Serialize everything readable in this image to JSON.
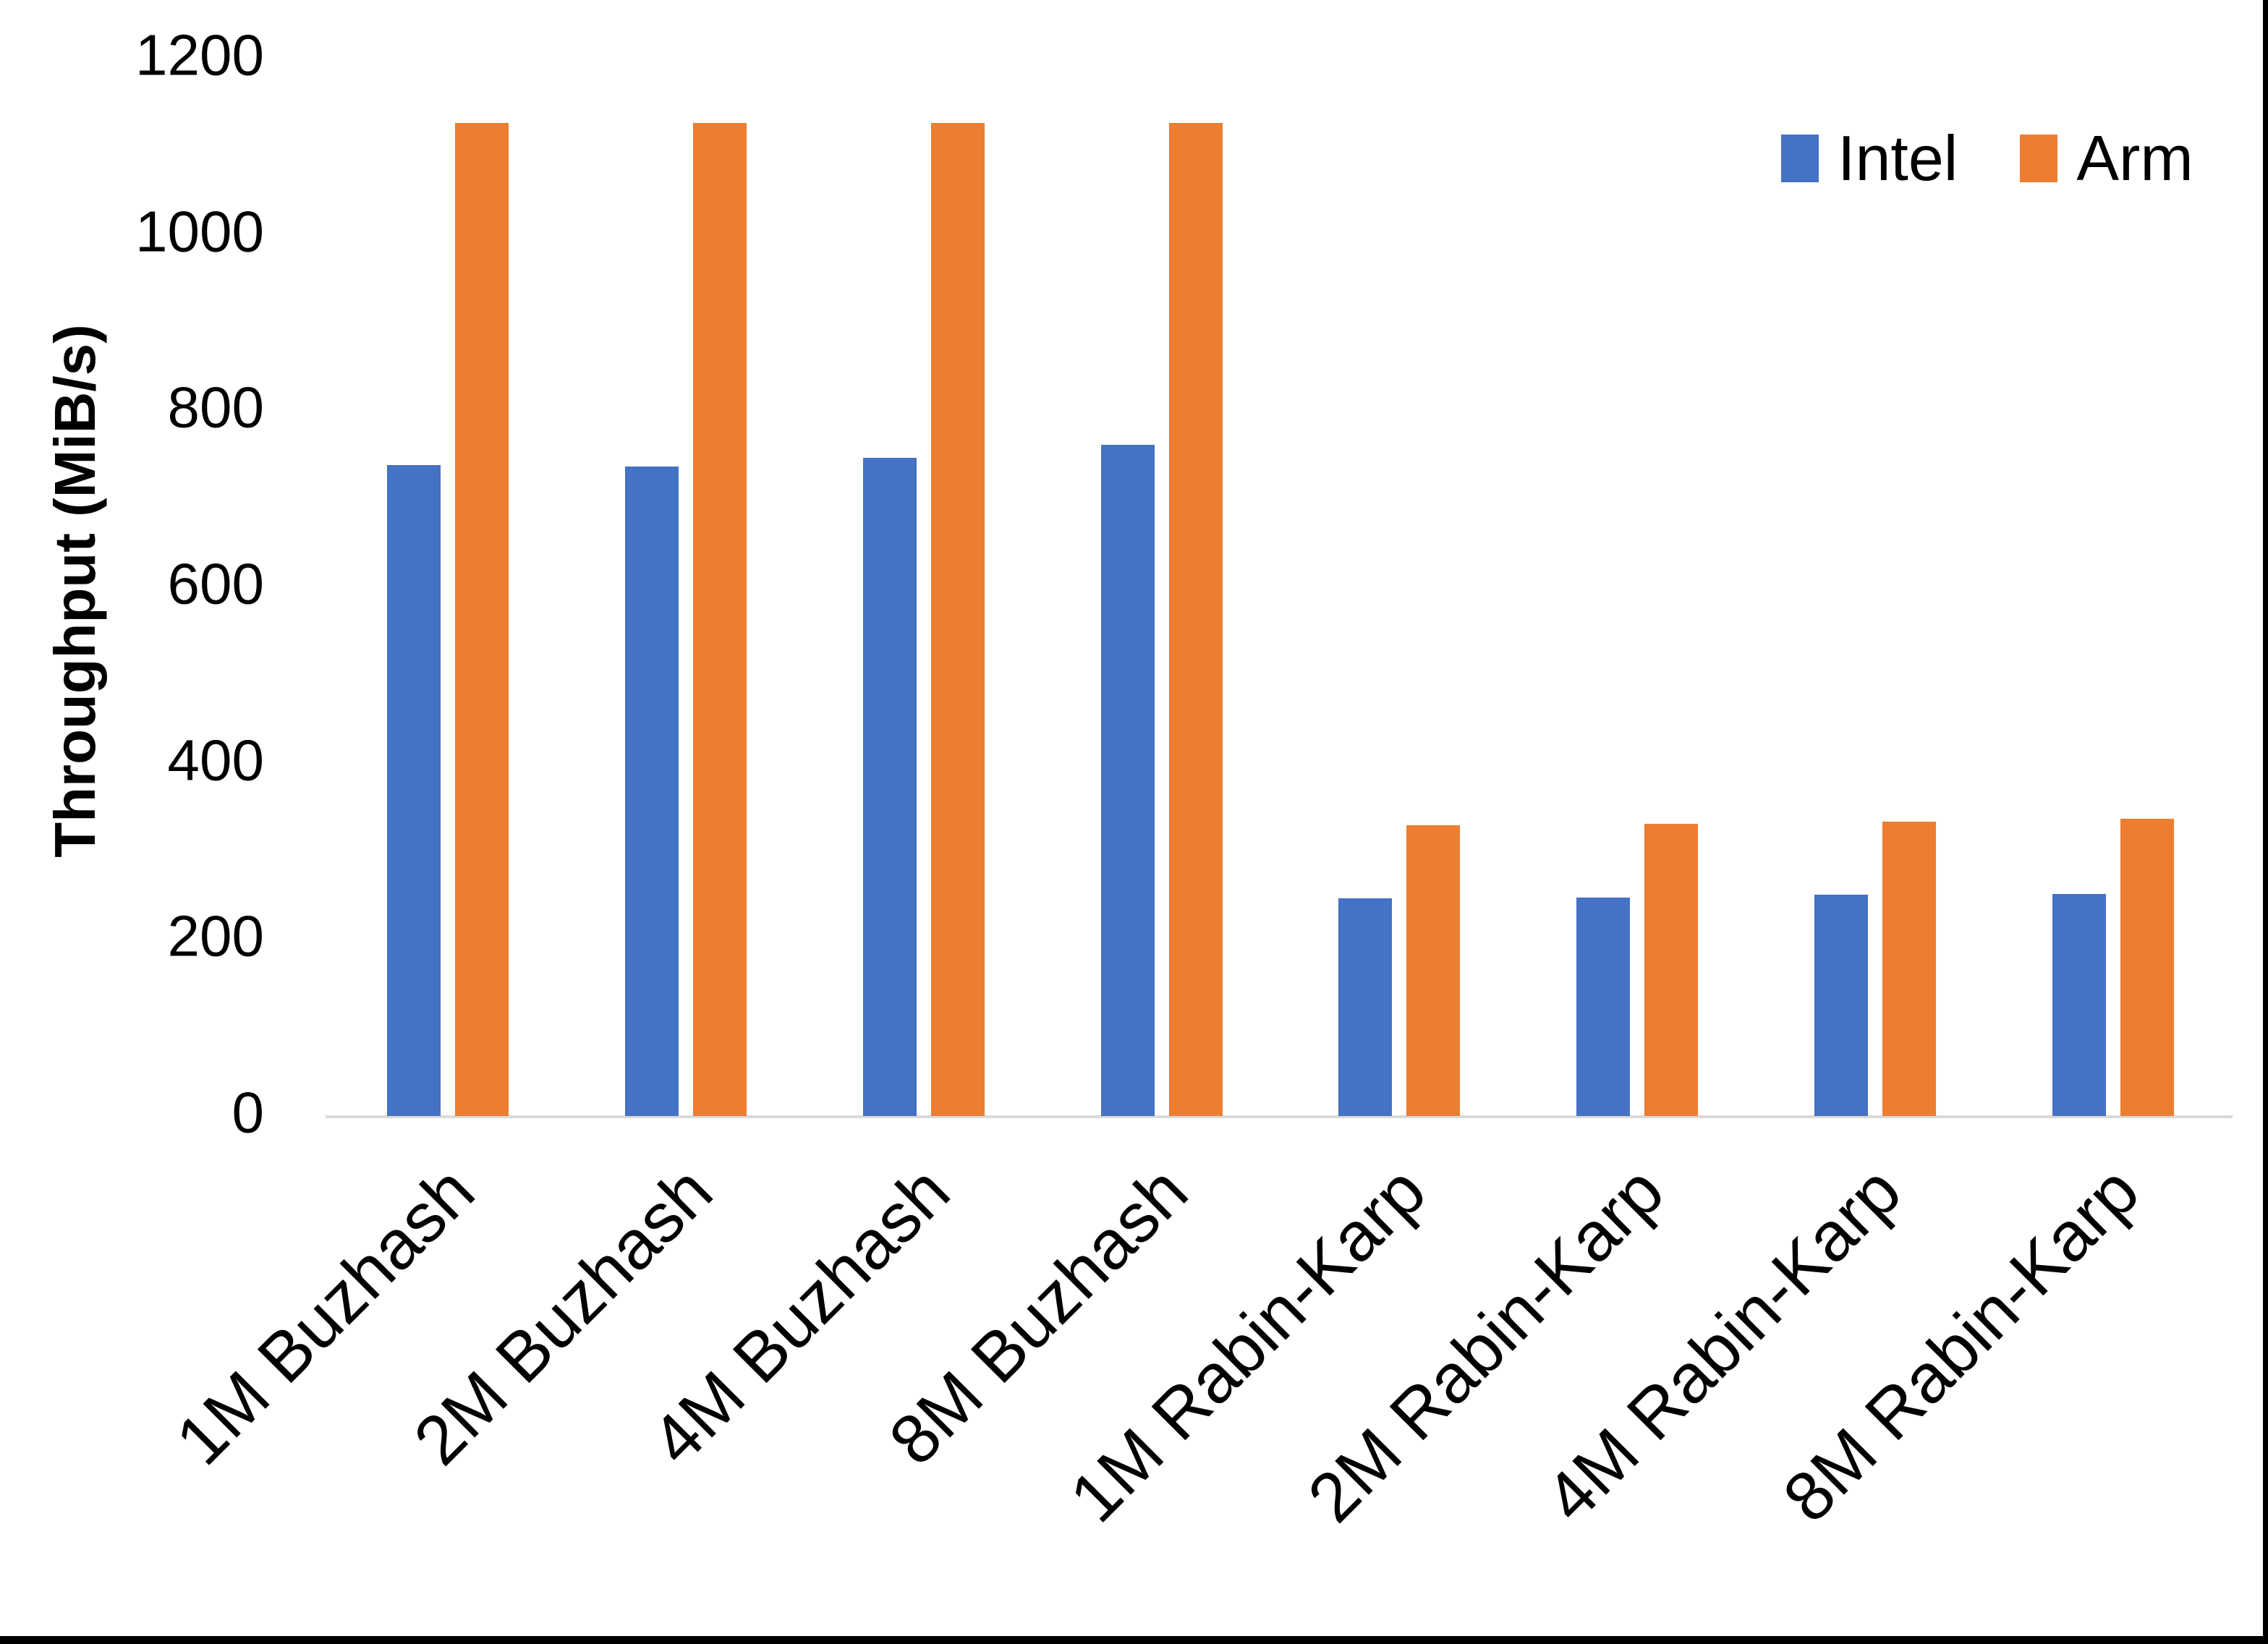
{
  "chart_data": {
    "type": "bar",
    "title": "",
    "ylabel": "Throughput (MiB/s)",
    "xlabel": "",
    "categories": [
      "1M Buzhash",
      "2M Buzhash",
      "4M Buzhash",
      "8M Buzhash",
      "1M Rabin-Karp",
      "2M Rabin-Karp",
      "4M Rabin-Karp",
      "8M Rabin-Karp"
    ],
    "series": [
      {
        "name": "Intel",
        "color": "#4472C4",
        "values": [
          739,
          737,
          747,
          762,
          247,
          248,
          251,
          252
        ]
      },
      {
        "name": "Arm",
        "color": "#ED7D31",
        "values": [
          1127,
          1127,
          1127,
          1127,
          330,
          332,
          334,
          337
        ]
      }
    ],
    "yticks": [
      0,
      200,
      400,
      600,
      800,
      1000,
      1200
    ],
    "ylim": [
      0,
      1200
    ],
    "grid": false,
    "legend_position": "top-right",
    "axis_line_color": "#D9D9D9",
    "text_color": "#000000",
    "background_color": "#FFFFFF"
  }
}
